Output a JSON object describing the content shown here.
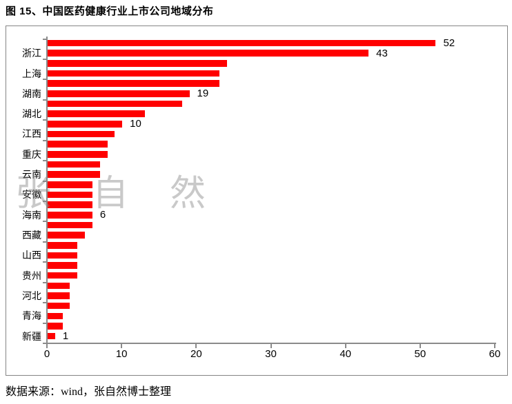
{
  "title": "图 15、中国医药健康行业上市公司地域分布",
  "source_note": "数据来源：wind，张自然博士整理",
  "watermark": "张自然",
  "colors": {
    "bar": "#ff0000",
    "axis": "#8a8a8a",
    "frame_border": "#848484",
    "text": "#000000",
    "watermark": "rgba(135,135,135,0.45)"
  },
  "chart_data": {
    "type": "bar",
    "orientation": "horizontal",
    "title": "图 15、中国医药健康行业上市公司地域分布",
    "xlabel": "",
    "ylabel": "",
    "xlim": [
      0,
      60
    ],
    "x_ticks": [
      0,
      10,
      20,
      30,
      40,
      50,
      60
    ],
    "grid": false,
    "legend": false,
    "category_label_note": "axis shows a label on every second bar only",
    "visible_category_labels": [
      "浙江",
      "上海",
      "湖南",
      "湖北",
      "江西",
      "重庆",
      "云南",
      "安徽",
      "海南",
      "西藏",
      "山西",
      "贵州",
      "河北",
      "青海",
      "新疆"
    ],
    "bars": [
      {
        "index": 1,
        "label": "",
        "value": 52,
        "data_label": "52"
      },
      {
        "index": 2,
        "label": "浙江",
        "value": 43,
        "data_label": "43"
      },
      {
        "index": 3,
        "label": "",
        "value": 24,
        "data_label": ""
      },
      {
        "index": 4,
        "label": "上海",
        "value": 23,
        "data_label": ""
      },
      {
        "index": 5,
        "label": "",
        "value": 23,
        "data_label": ""
      },
      {
        "index": 6,
        "label": "湖南",
        "value": 19,
        "data_label": "19"
      },
      {
        "index": 7,
        "label": "",
        "value": 18,
        "data_label": ""
      },
      {
        "index": 8,
        "label": "湖北",
        "value": 13,
        "data_label": ""
      },
      {
        "index": 9,
        "label": "",
        "value": 10,
        "data_label": "10"
      },
      {
        "index": 10,
        "label": "江西",
        "value": 9,
        "data_label": ""
      },
      {
        "index": 11,
        "label": "",
        "value": 8,
        "data_label": ""
      },
      {
        "index": 12,
        "label": "重庆",
        "value": 8,
        "data_label": ""
      },
      {
        "index": 13,
        "label": "",
        "value": 7,
        "data_label": ""
      },
      {
        "index": 14,
        "label": "云南",
        "value": 7,
        "data_label": ""
      },
      {
        "index": 15,
        "label": "",
        "value": 6,
        "data_label": ""
      },
      {
        "index": 16,
        "label": "安徽",
        "value": 6,
        "data_label": ""
      },
      {
        "index": 17,
        "label": "",
        "value": 6,
        "data_label": ""
      },
      {
        "index": 18,
        "label": "海南",
        "value": 6,
        "data_label": "6"
      },
      {
        "index": 19,
        "label": "",
        "value": 6,
        "data_label": ""
      },
      {
        "index": 20,
        "label": "西藏",
        "value": 5,
        "data_label": ""
      },
      {
        "index": 21,
        "label": "",
        "value": 4,
        "data_label": ""
      },
      {
        "index": 22,
        "label": "山西",
        "value": 4,
        "data_label": ""
      },
      {
        "index": 23,
        "label": "",
        "value": 4,
        "data_label": ""
      },
      {
        "index": 24,
        "label": "贵州",
        "value": 4,
        "data_label": ""
      },
      {
        "index": 25,
        "label": "",
        "value": 3,
        "data_label": ""
      },
      {
        "index": 26,
        "label": "河北",
        "value": 3,
        "data_label": ""
      },
      {
        "index": 27,
        "label": "",
        "value": 3,
        "data_label": ""
      },
      {
        "index": 28,
        "label": "青海",
        "value": 2,
        "data_label": ""
      },
      {
        "index": 29,
        "label": "",
        "value": 2,
        "data_label": ""
      },
      {
        "index": 30,
        "label": "新疆",
        "value": 1,
        "data_label": "1"
      }
    ]
  }
}
